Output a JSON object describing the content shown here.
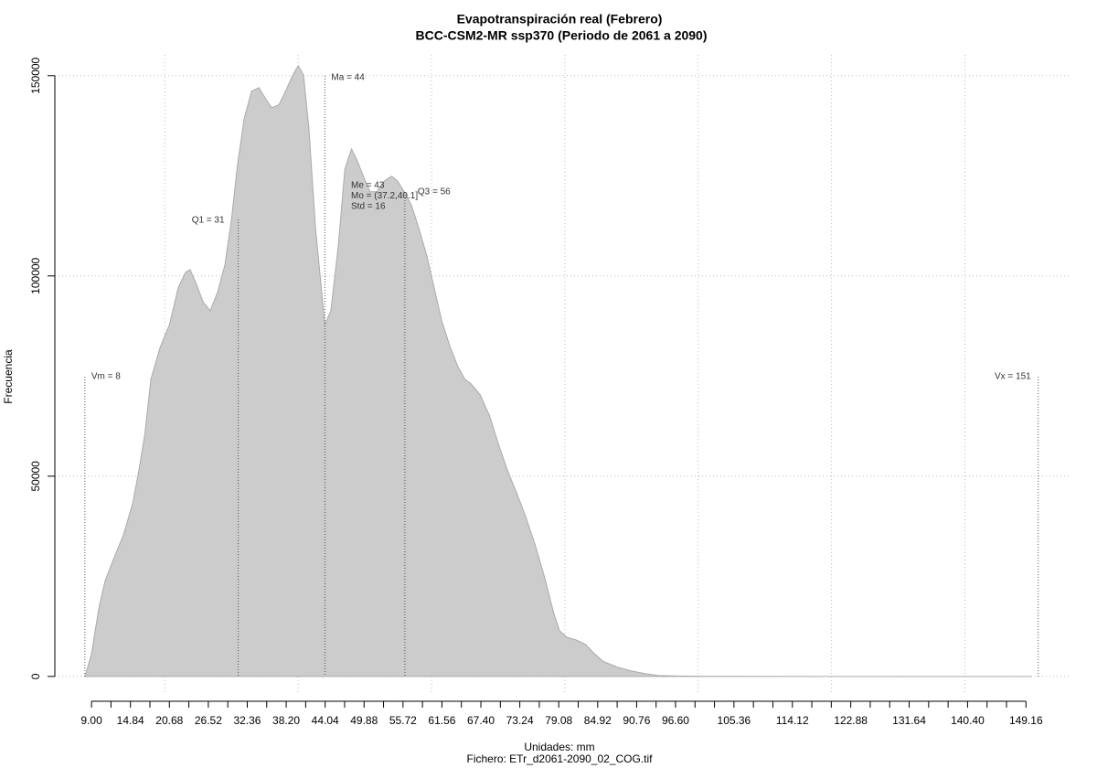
{
  "chart_data": {
    "type": "area",
    "title": "Evapotranspiración real (Febrero)",
    "subtitle": "BCC-CSM2-MR ssp370 (Periodo de 2061 a 2090)",
    "x_label": "Unidades: mm",
    "caption": "Fichero: ETr_d2061-2090_02_COG.tif",
    "y_label": "Frecuencia",
    "color": "#cccccc",
    "line_color": "#aaaaaa",
    "xlim": [
      3.5,
      155.7
    ],
    "ylim": [
      -4600,
      155200
    ],
    "xticks": [
      {
        "value": 9.0,
        "label": "9.00"
      },
      14.84,
      20.68,
      26.52,
      32.36,
      {
        "value": 38.2,
        "label": "38.20"
      },
      44.04,
      49.88,
      55.72,
      61.56,
      {
        "value": 67.4,
        "label": "67.40"
      },
      73.24,
      79.08,
      84.92,
      90.76,
      {
        "value": 96.6,
        "label": "96.60"
      },
      105.36,
      114.12,
      122.88,
      131.64,
      {
        "value": 140.4,
        "label": "140.40"
      },
      149.16
    ],
    "xticks_minor": [
      11.92,
      17.76,
      23.6,
      29.44,
      35.28,
      41.12,
      46.96,
      52.8,
      58.64,
      64.48,
      70.32,
      76.16,
      82.0,
      87.84,
      93.68,
      99.52,
      102.44,
      108.28,
      111.2,
      117.04,
      119.96,
      125.8,
      128.72,
      134.56,
      137.48,
      143.32,
      146.24
    ],
    "xgrid": [
      20,
      40,
      60,
      80,
      100,
      120,
      140
    ],
    "yticks": [
      0,
      50000,
      100000,
      150000
    ],
    "grid": true,
    "x": [
      8.04,
      9.0,
      10.1,
      11.06,
      12.4,
      13.8,
      15.2,
      16.1,
      17,
      17.9,
      19.3,
      20.7,
      22.0,
      23.1,
      23.8,
      24.8,
      25.7,
      26.8,
      27.9,
      29.0,
      30.0,
      30.9,
      31.9,
      33.0,
      34.1,
      35.1,
      36.0,
      37.1,
      38.1,
      39.2,
      40.0,
      40.8,
      41.6,
      42.6,
      44.0,
      44.9,
      46.0,
      47.0,
      48.0,
      48.8,
      49.9,
      50.8,
      51.8,
      52.9,
      54.0,
      54.9,
      55.9,
      57.0,
      58.1,
      59.3,
      60.4,
      61.5,
      62.8,
      63.9,
      65.0,
      65.9,
      67.3,
      68.7,
      70.0,
      71.4,
      72.8,
      74.1,
      75.5,
      76.9,
      78.3,
      79.2,
      80.3,
      81.7,
      83.1,
      84.4,
      85.8,
      87.9,
      89.9,
      92.0,
      94.0,
      96.8,
      100.9,
      105,
      150
    ],
    "values": [
      0,
      5700,
      17100,
      24000,
      29700,
      35400,
      43400,
      51400,
      60500,
      74200,
      82200,
      87900,
      97000,
      100900,
      101600,
      97700,
      93600,
      91300,
      95900,
      102700,
      114200,
      127800,
      139300,
      146100,
      147000,
      144300,
      142000,
      142700,
      146100,
      150200,
      152500,
      150200,
      137000,
      111900,
      87900,
      91300,
      107300,
      126700,
      131700,
      129000,
      124400,
      121000,
      121000,
      123700,
      124900,
      123700,
      121000,
      117600,
      111900,
      105000,
      97000,
      89000,
      82200,
      77600,
      74200,
      73100,
      70300,
      65100,
      58200,
      51400,
      45700,
      40000,
      33100,
      25100,
      16000,
      11400,
      9800,
      9100,
      8000,
      5700,
      3700,
      2300,
      1400,
      700,
      230,
      100,
      30,
      10,
      0
    ],
    "markers": [
      {
        "value": 8,
        "label": "Vm = 8"
      },
      {
        "value": 31,
        "label": "Q1 = 31"
      },
      {
        "value": 44,
        "label": "Ma = 44"
      },
      {
        "value": 56,
        "label": "Q3 = 56"
      },
      {
        "value": 151,
        "label": "Vx = 151"
      }
    ],
    "stats": [
      "Me = 43",
      "Mo = (37.2,40.1]",
      "Std = 16"
    ]
  }
}
